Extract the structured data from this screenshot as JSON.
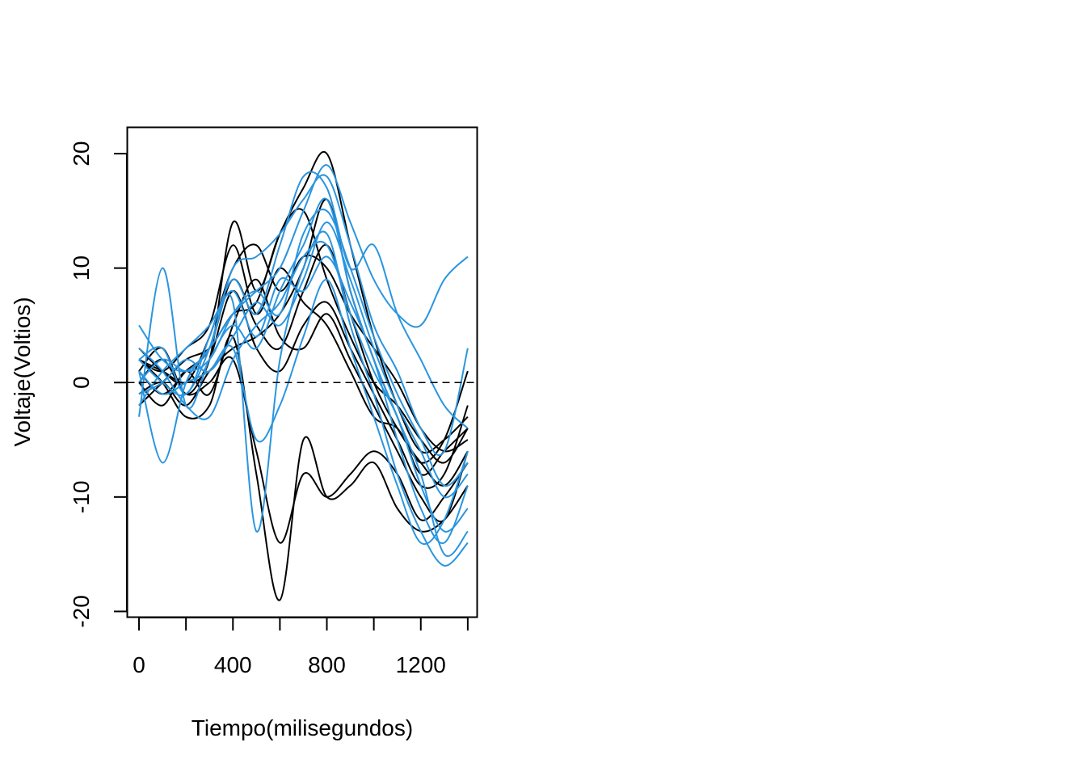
{
  "chart_data": {
    "type": "line",
    "xlabel": "Tiempo(milisegundos)",
    "ylabel": "Voltaje(Voltios)",
    "xlim": [
      -50,
      1440
    ],
    "ylim": [
      -20.5,
      22.3
    ],
    "x_ticks": [
      0,
      200,
      400,
      600,
      800,
      1000,
      1200,
      1400
    ],
    "x_tick_labels": [
      "0",
      "",
      "400",
      "",
      "800",
      "",
      "1200",
      ""
    ],
    "y_ticks": [
      -20,
      -10,
      0,
      10,
      20
    ],
    "y_tick_labels": [
      "-20",
      "-10",
      "0",
      "10",
      "20"
    ],
    "reference_line": {
      "y": 0,
      "style": "dashed",
      "color": "#000000"
    },
    "x": [
      0,
      100,
      200,
      300,
      400,
      500,
      600,
      700,
      800,
      900,
      1000,
      1100,
      1200,
      1300,
      1400
    ],
    "series_groups": [
      {
        "color": "#000000",
        "series": [
          {
            "values": [
              2,
              1,
              0,
              2,
              14,
              8,
              13,
              17,
              20,
              12,
              4,
              -2,
              -6,
              -5,
              -3
            ]
          },
          {
            "values": [
              -1,
              0,
              -2,
              1,
              3,
              4,
              6,
              10,
              16,
              8,
              2,
              -3,
              -8,
              -6,
              -4
            ]
          },
          {
            "values": [
              1,
              -1,
              1,
              3,
              9,
              5,
              3,
              8,
              12,
              6,
              0,
              -4,
              -7,
              -9,
              -6
            ]
          },
          {
            "values": [
              0,
              2,
              -1,
              0,
              2,
              -6,
              -14,
              -8,
              -10,
              -8,
              -6,
              -8,
              -12,
              -10,
              -7
            ]
          },
          {
            "values": [
              2,
              0,
              -3,
              -2,
              4,
              -8,
              -19,
              -5,
              -10,
              -9,
              -7,
              -11,
              -13,
              -12,
              -9
            ]
          },
          {
            "values": [
              3,
              1,
              0,
              4,
              10,
              12,
              8,
              11,
              10,
              6,
              3,
              0,
              -4,
              -6,
              -5
            ]
          },
          {
            "values": [
              -2,
              0,
              2,
              3,
              6,
              7,
              13,
              15,
              9,
              4,
              0,
              -2,
              -5,
              -7,
              -4
            ]
          },
          {
            "values": [
              1,
              3,
              -1,
              2,
              8,
              3,
              1,
              5,
              7,
              3,
              -1,
              -5,
              -9,
              -8,
              -2
            ]
          },
          {
            "values": [
              0,
              -2,
              1,
              -1,
              5,
              9,
              4,
              3,
              6,
              2,
              -2,
              -6,
              -10,
              -12,
              -6
            ]
          },
          {
            "values": [
              2,
              1,
              3,
              5,
              12,
              6,
              10,
              7,
              5,
              1,
              -3,
              -4,
              -7,
              -5,
              1
            ]
          }
        ]
      },
      {
        "color": "#2a95e0",
        "series": [
          {
            "values": [
              5,
              2,
              1,
              3,
              6,
              8,
              10,
              15,
              19,
              14,
              9,
              6,
              5,
              9,
              11
            ]
          },
          {
            "values": [
              -3,
              10,
              -2,
              2,
              5,
              3,
              8,
              12,
              16,
              8,
              2,
              -3,
              -8,
              -15,
              -13
            ]
          },
          {
            "values": [
              1,
              -7,
              0,
              3,
              7,
              -13,
              2,
              10,
              13,
              5,
              -1,
              -8,
              -13,
              -16,
              -14
            ]
          },
          {
            "values": [
              2,
              3,
              -1,
              4,
              9,
              6,
              12,
              18,
              17,
              10,
              12,
              6,
              2,
              -2,
              -4
            ]
          },
          {
            "values": [
              -1,
              0,
              2,
              1,
              4,
              7,
              5,
              9,
              14,
              9,
              3,
              -2,
              -6,
              -10,
              -8
            ]
          },
          {
            "values": [
              3,
              1,
              -2,
              -3,
              2,
              5,
              7,
              11,
              12,
              6,
              1,
              -3,
              -9,
              -13,
              -11
            ]
          },
          {
            "values": [
              0,
              2,
              1,
              2,
              6,
              8,
              6,
              13,
              15,
              10,
              4,
              -1,
              -5,
              -9,
              -7
            ]
          },
          {
            "values": [
              -2,
              1,
              3,
              5,
              8,
              4,
              9,
              8,
              11,
              7,
              2,
              -5,
              -11,
              -14,
              -9
            ]
          },
          {
            "values": [
              1,
              -1,
              0,
              1,
              3,
              -5,
              -2,
              4,
              9,
              3,
              -3,
              -9,
              -14,
              -12,
              -6
            ]
          },
          {
            "values": [
              2,
              0,
              -1,
              3,
              10,
              11,
              13,
              16,
              18,
              12,
              5,
              1,
              -4,
              -6,
              3
            ]
          }
        ]
      }
    ]
  }
}
